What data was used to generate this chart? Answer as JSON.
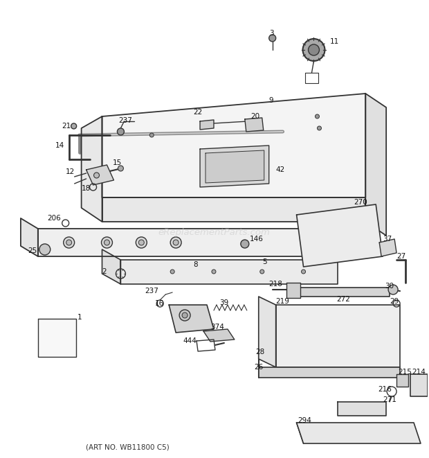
{
  "art_no": "(ART NO. WB11800 C5)",
  "watermark": "eReplacementParts.com",
  "bg_color": "#ffffff",
  "lc": "#333333",
  "label_color": "#111111",
  "fig_width": 6.2,
  "fig_height": 6.61,
  "dpi": 100
}
